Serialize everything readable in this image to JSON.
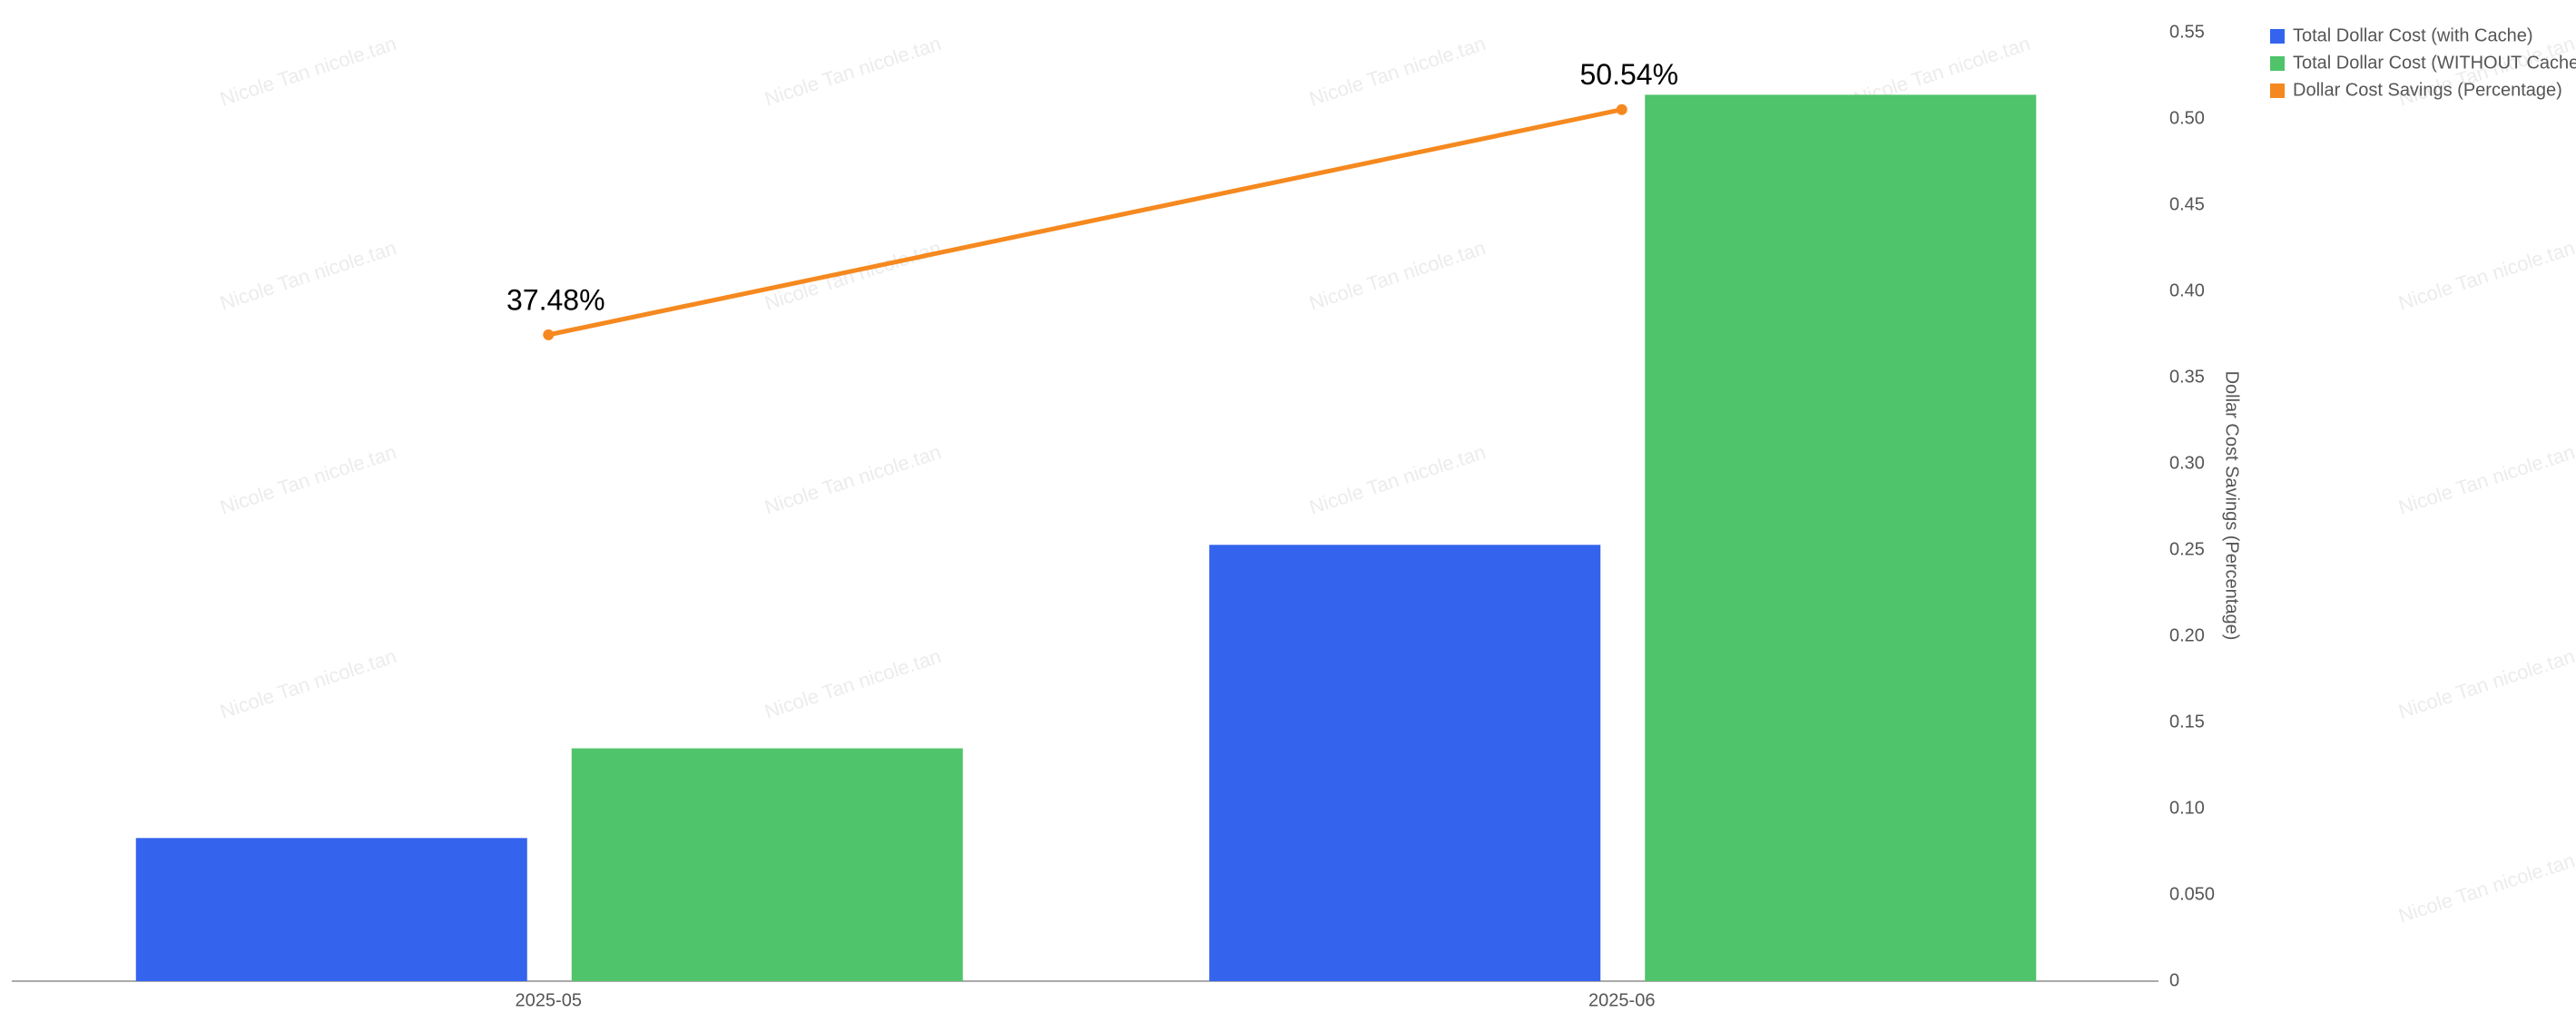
{
  "chart_data": {
    "type": "bar",
    "categories": [
      "2025-05",
      "2025-06"
    ],
    "series": [
      {
        "name": "Total Dollar Cost (with Cache)",
        "color": "#3464ee",
        "values": [
          0.083,
          0.253
        ]
      },
      {
        "name": "Total Dollar Cost (WITHOUT Cache)",
        "color": "#4fc46a",
        "values": [
          0.135,
          0.514
        ]
      },
      {
        "name": "Dollar Cost Savings (Percentage)",
        "color": "#f5891f",
        "type": "line",
        "values": [
          0.3748,
          0.5054
        ],
        "value_labels": [
          "37.48%",
          "50.54%"
        ]
      }
    ],
    "y_label": "Dollar Cost Savings (Percentage)",
    "ylim": [
      0,
      0.55
    ],
    "yticks": [
      0,
      {
        "value": 0.05,
        "label": "0.050"
      },
      {
        "value": 0.1,
        "label": "0.10"
      },
      0.15,
      {
        "value": 0.2,
        "label": "0.20"
      },
      0.25,
      {
        "value": 0.3,
        "label": "0.30"
      },
      0.35,
      {
        "value": 0.4,
        "label": "0.40"
      },
      0.45,
      {
        "value": 0.5,
        "label": "0.50"
      },
      0.55
    ],
    "watermark": "Nicole Tan nicole.tan"
  }
}
